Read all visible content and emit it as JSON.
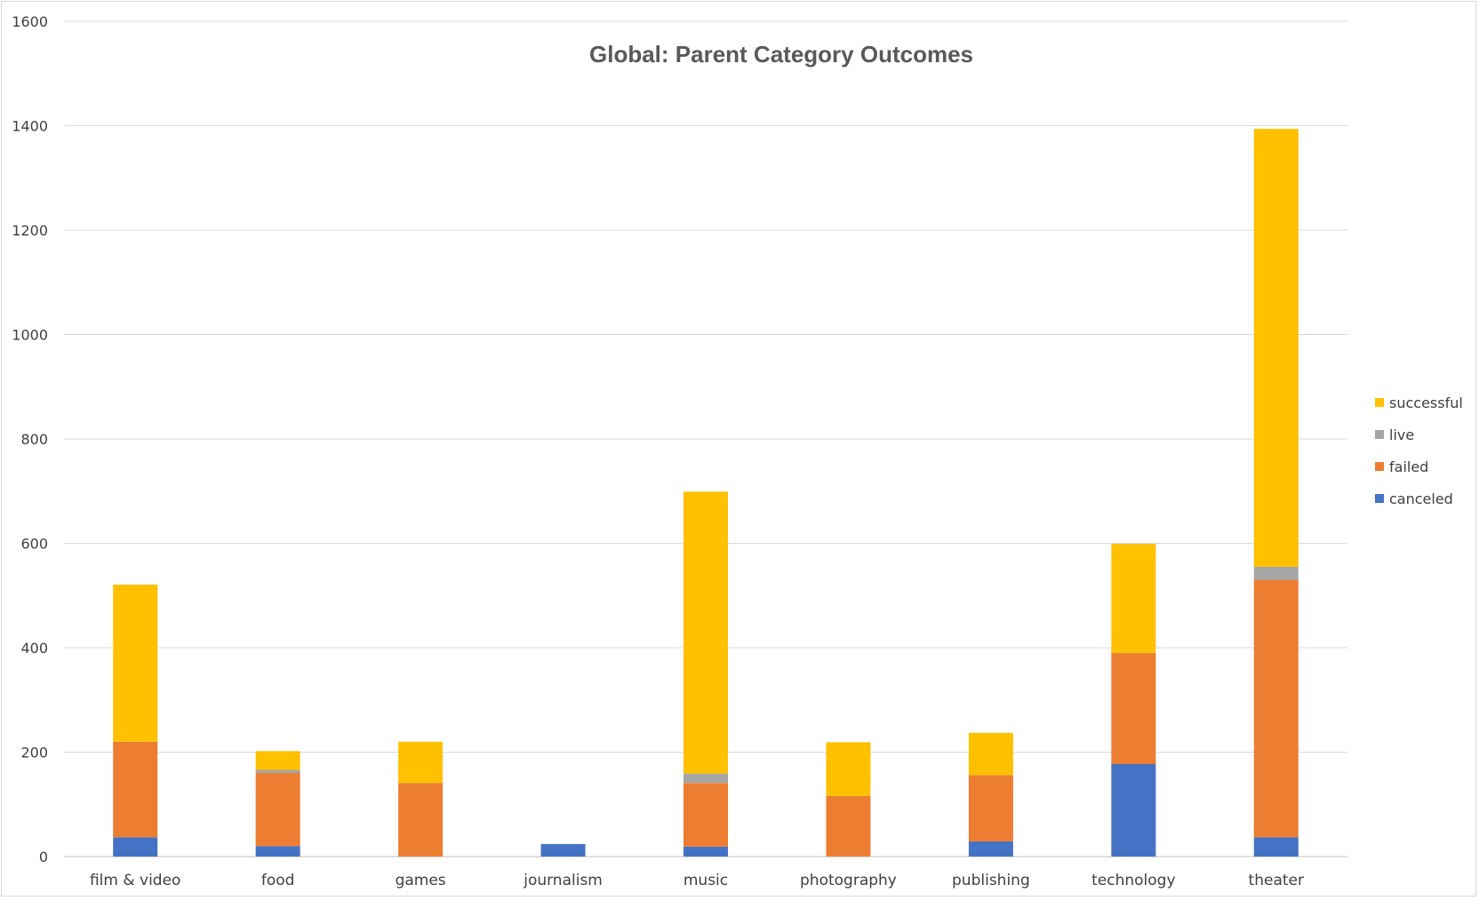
{
  "chart_data": {
    "type": "bar",
    "stacked": true,
    "title": "Global: Parent Category Outcomes",
    "xlabel": "",
    "ylabel": "",
    "ylim": [
      0,
      1600
    ],
    "yticks": [
      0,
      200,
      400,
      600,
      800,
      1000,
      1200,
      1400,
      1600
    ],
    "grid": true,
    "legend_position": "right",
    "categories": [
      "film & video",
      "food",
      "games",
      "journalism",
      "music",
      "photography",
      "publishing",
      "technology",
      "theater"
    ],
    "series": [
      {
        "name": "canceled",
        "color": "#4472C4",
        "values": [
          37,
          20,
          0,
          24,
          19,
          0,
          29,
          177,
          37
        ]
      },
      {
        "name": "failed",
        "color": "#ED7D31",
        "values": [
          183,
          140,
          141,
          0,
          122,
          116,
          127,
          213,
          493
        ]
      },
      {
        "name": "live",
        "color": "#A5A5A5",
        "values": [
          0,
          6,
          0,
          0,
          18,
          0,
          0,
          0,
          25
        ]
      },
      {
        "name": "successful",
        "color": "#FFC000",
        "values": [
          301,
          36,
          79,
          0,
          540,
          103,
          81,
          209,
          839
        ]
      }
    ]
  }
}
